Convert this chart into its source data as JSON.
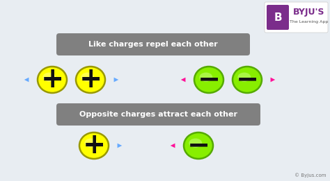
{
  "bg_color": "#e8edf2",
  "title1": "Like charges repel each other",
  "title2": "Opposite charges attract each other",
  "title_box_color": "#808080",
  "title_text_color": "#ffffff",
  "yellow_color": "#ffff00",
  "yellow_highlight": "#ffff99",
  "yellow_edge": "#999900",
  "green_color": "#88ee00",
  "green_highlight": "#ccff88",
  "green_edge": "#55aa00",
  "sign_color": "#111111",
  "blue_arrow": "#66aaff",
  "pink_arrow": "#ff1199",
  "byju_text": "© Byjus.com",
  "byju_color": "#777777",
  "logo_bg": "#ffffff",
  "logo_purple": "#7b2d8b",
  "logo_text": "BYJU'S",
  "logo_sub": "The Learning App",
  "fig_w": 4.74,
  "fig_h": 2.61,
  "dpi": 100
}
